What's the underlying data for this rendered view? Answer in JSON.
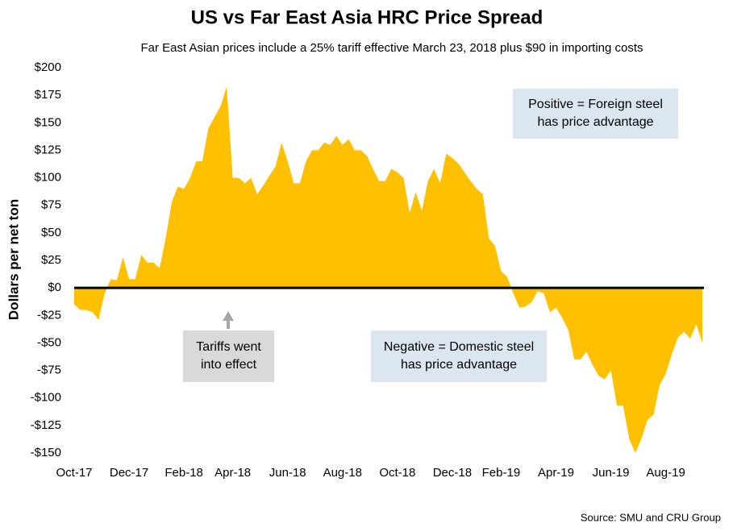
{
  "chart_data": {
    "type": "area",
    "title": "US vs Far East Asia HRC Price Spread",
    "subtitle": "Far East Asian prices include a 25% tariff effective March 23, 2018 plus $90 in importing costs",
    "y_label": "Dollars per net ton",
    "source": "Source: SMU and CRU Group",
    "color": "#FFC000",
    "categories": [
      "Oct-17",
      null,
      null,
      null,
      null,
      null,
      null,
      null,
      null,
      "Dec-17",
      null,
      null,
      null,
      null,
      null,
      null,
      null,
      null,
      "Feb-18",
      null,
      null,
      null,
      null,
      null,
      null,
      null,
      "Apr-18",
      null,
      null,
      null,
      null,
      null,
      null,
      null,
      null,
      "Jun-18",
      null,
      null,
      null,
      null,
      null,
      null,
      null,
      null,
      "Aug-18",
      null,
      null,
      null,
      null,
      null,
      null,
      null,
      null,
      "Oct-18",
      null,
      null,
      null,
      null,
      null,
      null,
      null,
      null,
      "Dec-18",
      null,
      null,
      null,
      null,
      null,
      null,
      null,
      "Feb-19",
      null,
      null,
      null,
      null,
      null,
      null,
      null,
      null,
      "Apr-19",
      null,
      null,
      null,
      null,
      null,
      null,
      null,
      null,
      "Jun-19",
      null,
      null,
      null,
      null,
      null,
      null,
      null,
      null,
      "Aug-19",
      null,
      null,
      null,
      null,
      null,
      null
    ],
    "values": [
      -15,
      -20,
      -20,
      -22,
      -29,
      -5,
      8,
      7,
      28,
      8,
      8,
      30,
      23,
      23,
      18,
      45,
      78,
      92,
      90,
      100,
      115,
      115,
      145,
      155,
      165,
      183,
      100,
      100,
      95,
      100,
      85,
      93,
      102,
      110,
      132,
      115,
      95,
      95,
      115,
      125,
      125,
      132,
      130,
      138,
      130,
      135,
      125,
      125,
      120,
      108,
      97,
      97,
      108,
      105,
      100,
      68,
      87,
      70,
      97,
      108,
      95,
      122,
      118,
      113,
      105,
      97,
      90,
      85,
      45,
      38,
      15,
      10,
      -5,
      -18,
      -17,
      -13,
      -3,
      -5,
      -22,
      -18,
      -27,
      -38,
      -65,
      -65,
      -58,
      -70,
      -80,
      -83,
      -75,
      -107,
      -107,
      -137,
      -150,
      -137,
      -120,
      -115,
      -88,
      -78,
      -60,
      -45,
      -40,
      -46,
      -33,
      -50
    ],
    "ylim": [
      -150,
      200
    ],
    "yticks": [
      {
        "value": -150,
        "label": "-$150"
      },
      {
        "value": -125,
        "label": "-$125"
      },
      {
        "value": -100,
        "label": "-$100"
      },
      {
        "value": -75,
        "label": "-$75"
      },
      {
        "value": -50,
        "label": "-$50"
      },
      {
        "value": -25,
        "label": "-$25"
      },
      {
        "value": 0,
        "label": "$0"
      },
      {
        "value": 25,
        "label": "$25"
      },
      {
        "value": 50,
        "label": "$50"
      },
      {
        "value": 75,
        "label": "$75"
      },
      {
        "value": 100,
        "label": "$100"
      },
      {
        "value": 125,
        "label": "$125"
      },
      {
        "value": 150,
        "label": "$150"
      },
      {
        "value": 175,
        "label": "$175"
      },
      {
        "value": 200,
        "label": "$200"
      }
    ],
    "annotations": [
      {
        "lines": [
          "Positive = Foreign steel",
          "has price advantage"
        ]
      },
      {
        "lines": [
          "Negative = Domestic steel",
          "has price advantage"
        ]
      },
      {
        "lines": [
          "Tariffs went",
          "into effect"
        ]
      }
    ]
  }
}
